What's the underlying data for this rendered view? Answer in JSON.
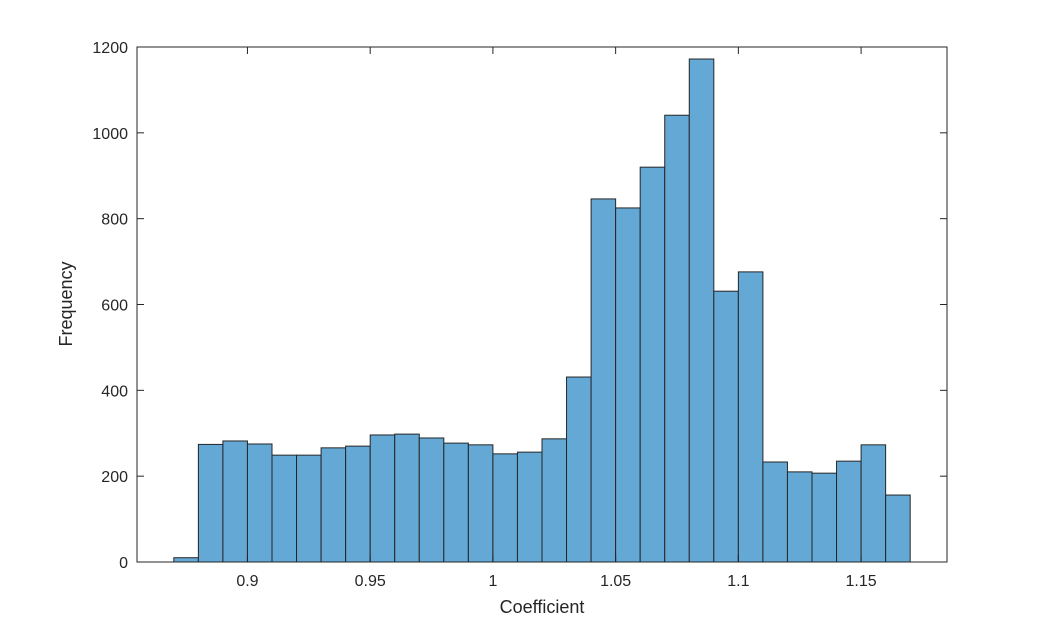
{
  "chart_data": {
    "type": "bar",
    "subtype": "histogram",
    "title": "",
    "xlabel": "Coefficient",
    "ylabel": "Frequency",
    "xlim": [
      0.855,
      1.185
    ],
    "ylim": [
      0,
      1200
    ],
    "bin_edges_start": 0.87,
    "bin_width": 0.01,
    "values": [
      10,
      274,
      282,
      275,
      249,
      249,
      266,
      270,
      296,
      298,
      289,
      277,
      273,
      252,
      256,
      287,
      431,
      846,
      825,
      920,
      1041,
      1172,
      631,
      676,
      233,
      210,
      207,
      235,
      273,
      156
    ],
    "xticks": [
      0.9,
      0.95,
      1,
      1.05,
      1.1,
      1.15
    ],
    "xtick_labels": [
      "0.9",
      "0.95",
      "1",
      "1.05",
      "1.1",
      "1.15"
    ],
    "yticks": [
      0,
      200,
      400,
      600,
      800,
      1000,
      1200
    ],
    "ytick_labels": [
      "0",
      "200",
      "400",
      "600",
      "800",
      "1000",
      "1200"
    ],
    "grid": false,
    "legend": "none",
    "colors": {
      "bar_fill": "#64a8d6",
      "bar_edge": "#262626",
      "axis": "#262626"
    }
  }
}
